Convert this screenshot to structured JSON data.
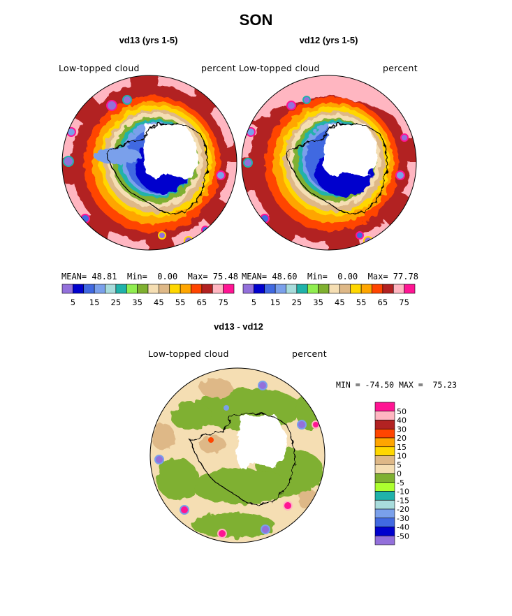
{
  "figure": {
    "title": "SON",
    "panels": [
      {
        "id": "vd13",
        "title": "vd13 (yrs 1-5)",
        "left_label": "Low-topped cloud",
        "right_label": "percent",
        "stats": {
          "mean_label": "MEAN=",
          "mean": "48.81",
          "min_label": "Min=",
          "min": "0.00",
          "max_label": "Max=",
          "max": "75.48"
        }
      },
      {
        "id": "vd12",
        "title": "vd12 (yrs 1-5)",
        "left_label": "Low-topped cloud",
        "right_label": "percent",
        "stats": {
          "mean_label": "MEAN=",
          "mean": "48.60",
          "min_label": "Min=",
          "min": "0.00",
          "max_label": "Max=",
          "max": "77.78"
        }
      }
    ],
    "diff": {
      "title": "vd13 - vd12",
      "left_label": "Low-topped cloud",
      "right_label": "percent",
      "minmax": "MIN = -74.50 MAX =  75.23"
    }
  },
  "colorbar_abs": {
    "colors": [
      "#9370db",
      "#0000cd",
      "#4169e1",
      "#7aa0eb",
      "#a8dcdc",
      "#20b2aa",
      "#90ee50",
      "#7fb030",
      "#f5deb3",
      "#deb887",
      "#ffd700",
      "#ffa500",
      "#ff4500",
      "#b22222",
      "#ffb6c1",
      "#ff1493"
    ],
    "tick_labels": [
      "5",
      "15",
      "25",
      "35",
      "45",
      "55",
      "65",
      "75"
    ]
  },
  "colorbar_diff": {
    "colors": [
      "#ff1493",
      "#ffb6c1",
      "#b22222",
      "#ff4500",
      "#ffa500",
      "#ffd700",
      "#deb887",
      "#f5deb3",
      "#7fb030",
      "#adff2f",
      "#20b2aa",
      "#a8dcdc",
      "#7aa0eb",
      "#4169e1",
      "#0000cd",
      "#9370db"
    ],
    "labels": [
      "50",
      "40",
      "30",
      "20",
      "15",
      "10",
      "5",
      "0",
      "-5",
      "-10",
      "-15",
      "-20",
      "-30",
      "-40",
      "-50"
    ]
  }
}
